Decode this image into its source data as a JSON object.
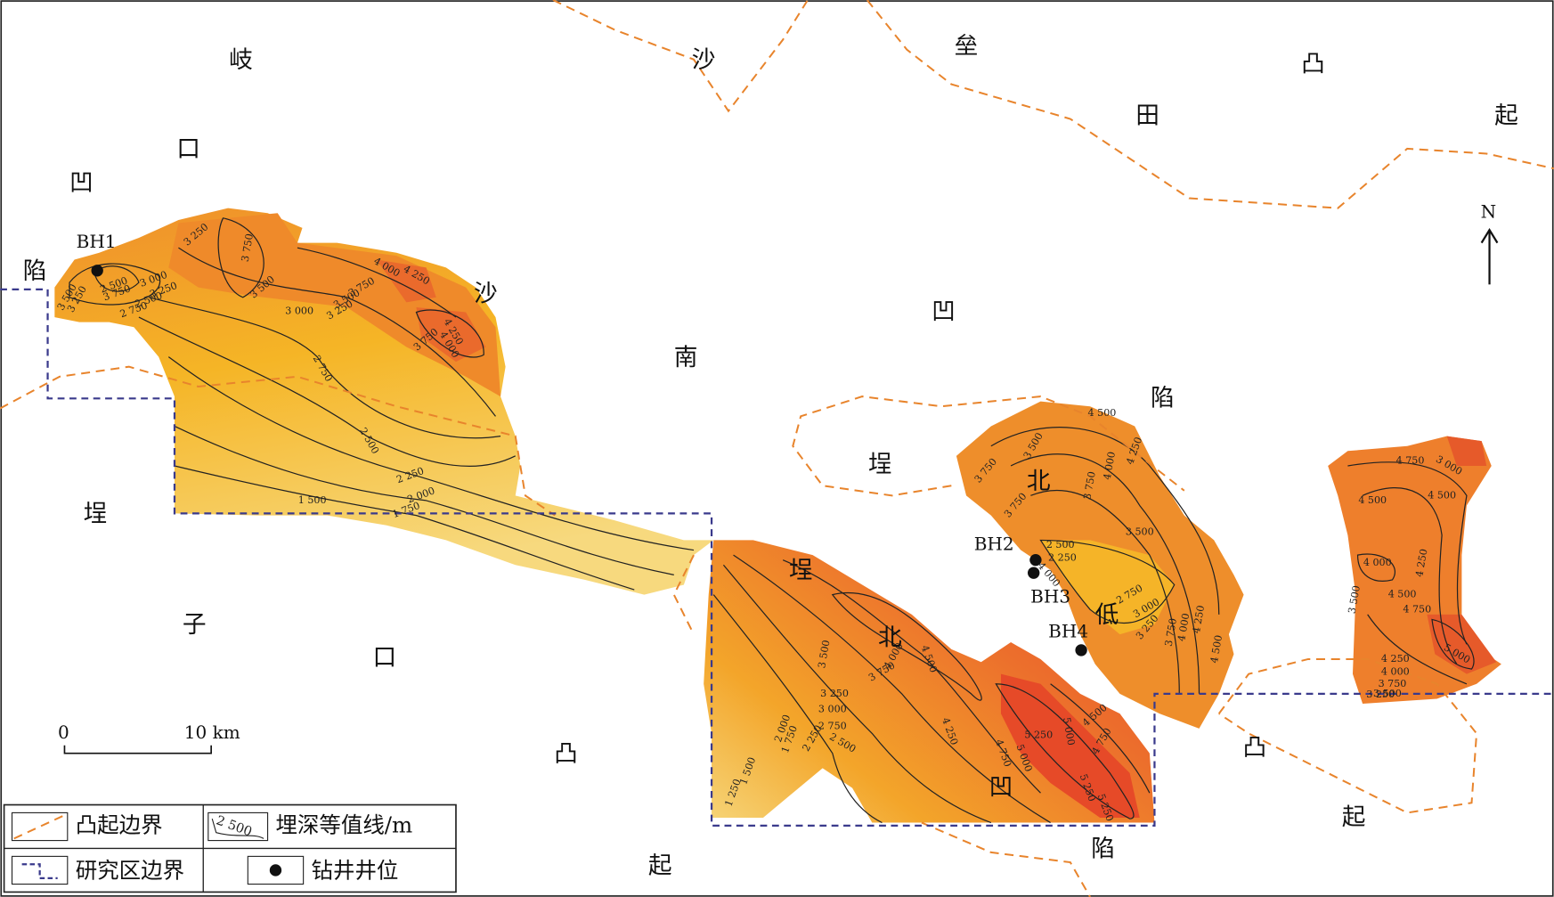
{
  "map": {
    "place_labels": [
      "岐",
      "沙",
      "垒",
      "凸",
      "田",
      "起",
      "口",
      "凹",
      "陷",
      "沙",
      "凹",
      "南",
      "陷",
      "埕",
      "北",
      "埕",
      "埕",
      "低",
      "子",
      "北",
      "口",
      "凸",
      "凸",
      "凹",
      "起",
      "陷",
      "起"
    ],
    "wells": [
      "BH1",
      "BH2",
      "BH3",
      "BH4"
    ],
    "contour_labels": [
      "3 250",
      "3 750",
      "3 000",
      "2 500",
      "3 750",
      "3 250",
      "2 500",
      "2 750",
      "3 500",
      "3 250",
      "3 500",
      "3 750",
      "3 500",
      "3 250",
      "4 000",
      "4 250",
      "4 250",
      "4 000",
      "3 750",
      "3 000",
      "2 750",
      "2 500",
      "2 250",
      "2 000",
      "1 750",
      "1 500",
      "4 500",
      "3 500",
      "4 250",
      "3 750",
      "4 000",
      "3 750",
      "3 750",
      "3 500",
      "2 500",
      "2 250",
      "4 000",
      "2 750",
      "3 000",
      "3 250",
      "3 750",
      "4 000",
      "4 250",
      "4 500",
      "4 750",
      "3 000",
      "4 500",
      "4 500",
      "4 000",
      "4 250",
      "4 500",
      "3 500",
      "4 750",
      "4 250",
      "4 000",
      "3 750",
      "3 500",
      "3 250",
      "5 000",
      "3 500",
      "4 000",
      "4 500",
      "3 750",
      "3 250",
      "3 000",
      "2 750",
      "2 500",
      "2 250",
      "2 000",
      "1 750",
      "1 500",
      "1 250",
      "4 250",
      "4 750",
      "5 250",
      "5 000",
      "4 500",
      "4 750",
      "5 000",
      "5 250",
      "5 250"
    ],
    "north": "N",
    "scale": {
      "start": "0",
      "end": "10 km"
    },
    "legend": {
      "uplift_boundary": "凸起边界",
      "contour": "埋深等值线/m",
      "contour_sample": "2 500",
      "study_boundary": "研究区边界",
      "well": "钻井井位"
    }
  }
}
